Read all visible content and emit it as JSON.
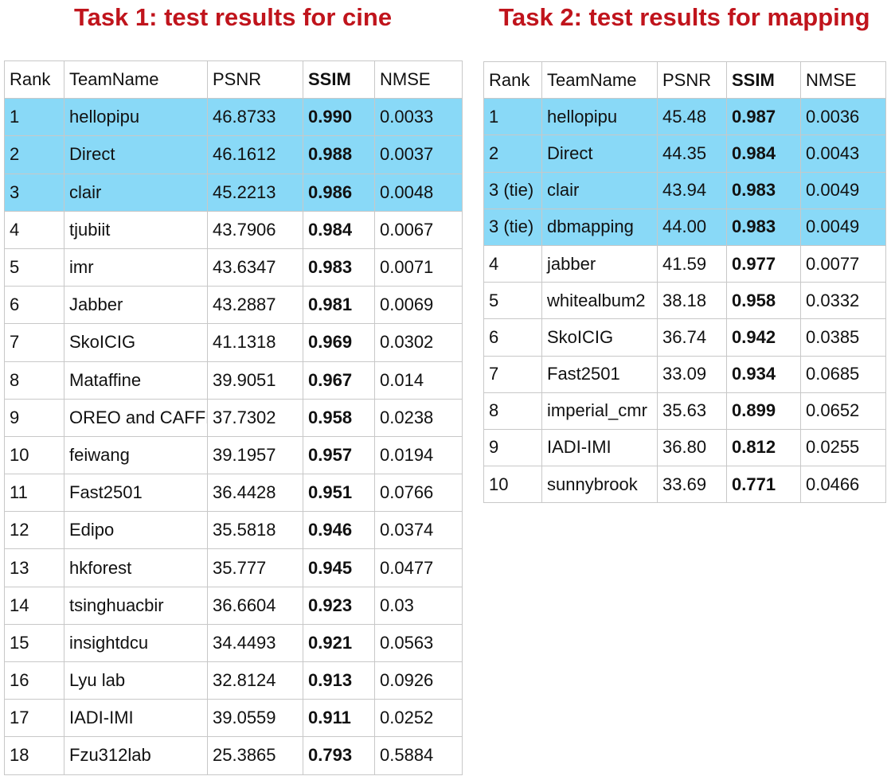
{
  "tables": [
    {
      "title": "Task 1: test results for cine",
      "header": [
        "Rank",
        "TeamName",
        "PSNR",
        "SSIM",
        "NMSE"
      ],
      "highlight_rows": [
        0,
        1,
        2
      ],
      "rows": [
        [
          "1",
          "hellopipu",
          "46.8733",
          "0.990",
          "0.0033"
        ],
        [
          "2",
          "Direct",
          "46.1612",
          "0.988",
          "0.0037"
        ],
        [
          "3",
          "clair",
          "45.2213",
          "0.986",
          "0.0048"
        ],
        [
          "4",
          "tjubiit",
          "43.7906",
          "0.984",
          "0.0067"
        ],
        [
          "5",
          "imr",
          "43.6347",
          "0.983",
          "0.0071"
        ],
        [
          "6",
          "Jabber",
          "43.2887",
          "0.981",
          "0.0069"
        ],
        [
          "7",
          "SkoICIG",
          "41.1318",
          "0.969",
          "0.0302"
        ],
        [
          "8",
          "Mataffine",
          "39.9051",
          "0.967",
          "0.014"
        ],
        [
          "9",
          "OREO and CAFFE",
          "37.7302",
          "0.958",
          "0.0238"
        ],
        [
          "10",
          "feiwang",
          "39.1957",
          "0.957",
          "0.0194"
        ],
        [
          "11",
          "Fast2501",
          "36.4428",
          "0.951",
          "0.0766"
        ],
        [
          "12",
          "Edipo",
          "35.5818",
          "0.946",
          "0.0374"
        ],
        [
          "13",
          "hkforest",
          "35.777",
          "0.945",
          "0.0477"
        ],
        [
          "14",
          "tsinghuacbir",
          "36.6604",
          "0.923",
          "0.03"
        ],
        [
          "15",
          "insightdcu",
          "34.4493",
          "0.921",
          "0.0563"
        ],
        [
          "16",
          "Lyu lab",
          "32.8124",
          "0.913",
          "0.0926"
        ],
        [
          "17",
          "IADI-IMI",
          "39.0559",
          "0.911",
          "0.0252"
        ],
        [
          "18",
          "Fzu312lab",
          "25.3865",
          "0.793",
          "0.5884"
        ]
      ]
    },
    {
      "title": "Task 2: test results for mapping",
      "header": [
        "Rank",
        "TeamName",
        "PSNR",
        "SSIM",
        "NMSE"
      ],
      "highlight_rows": [
        0,
        1,
        2,
        3
      ],
      "rows": [
        [
          "1",
          "hellopipu",
          "45.48",
          "0.987",
          "0.0036"
        ],
        [
          "2",
          "Direct",
          "44.35",
          "0.984",
          "0.0043"
        ],
        [
          "3 (tie)",
          "clair",
          "43.94",
          "0.983",
          "0.0049"
        ],
        [
          "3 (tie)",
          "dbmapping",
          "44.00",
          "0.983",
          "0.0049"
        ],
        [
          "4",
          "jabber",
          "41.59",
          "0.977",
          "0.0077"
        ],
        [
          "5",
          "whitealbum2",
          "38.18",
          "0.958",
          "0.0332"
        ],
        [
          "6",
          "SkoICIG",
          "36.74",
          "0.942",
          "0.0385"
        ],
        [
          "7",
          "Fast2501",
          "33.09",
          "0.934",
          "0.0685"
        ],
        [
          "8",
          "imperial_cmr",
          "35.63",
          "0.899",
          "0.0652"
        ],
        [
          "9",
          "IADI-IMI",
          "36.80",
          "0.812",
          "0.0255"
        ],
        [
          "10",
          "sunnybrook",
          "33.69",
          "0.771",
          "0.0466"
        ]
      ]
    }
  ]
}
